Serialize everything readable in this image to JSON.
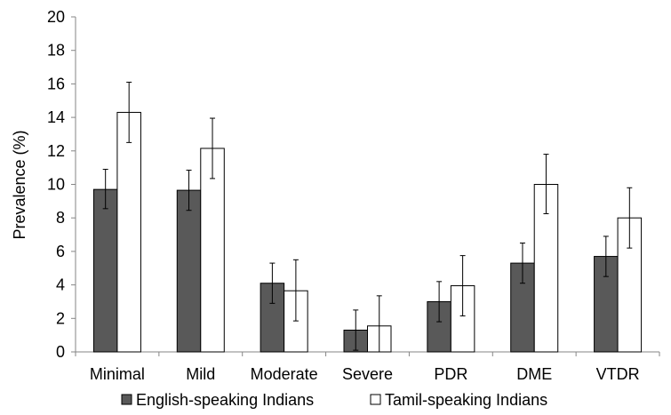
{
  "chart_data": {
    "type": "bar",
    "categories": [
      "Minimal",
      "Mild",
      "Moderate",
      "Severe",
      "PDR",
      "DME",
      "VTDR"
    ],
    "series": [
      {
        "name": "English-speaking Indians",
        "color": "#595959",
        "values": [
          9.7,
          9.65,
          4.1,
          1.3,
          3.0,
          5.3,
          5.7
        ],
        "error_low": [
          8.55,
          8.45,
          2.9,
          0.1,
          1.8,
          4.1,
          4.5
        ],
        "error_high": [
          10.9,
          10.85,
          5.3,
          2.5,
          4.2,
          6.5,
          6.9
        ]
      },
      {
        "name": "Tamil-speaking Indians",
        "color": "#ffffff",
        "values": [
          14.3,
          12.15,
          3.65,
          1.55,
          3.95,
          10.0,
          8.0
        ],
        "error_low": [
          12.5,
          10.35,
          1.85,
          0.0,
          2.15,
          8.25,
          6.2
        ],
        "error_high": [
          16.1,
          13.95,
          5.5,
          3.35,
          5.75,
          11.8,
          9.8
        ]
      }
    ],
    "ylabel": "Prevalence (%)",
    "xlabel": "",
    "ylim": [
      0,
      20
    ],
    "yticks": [
      0,
      2,
      4,
      6,
      8,
      10,
      12,
      14,
      16,
      18,
      20
    ],
    "grid": false,
    "legend_position": "bottom"
  }
}
